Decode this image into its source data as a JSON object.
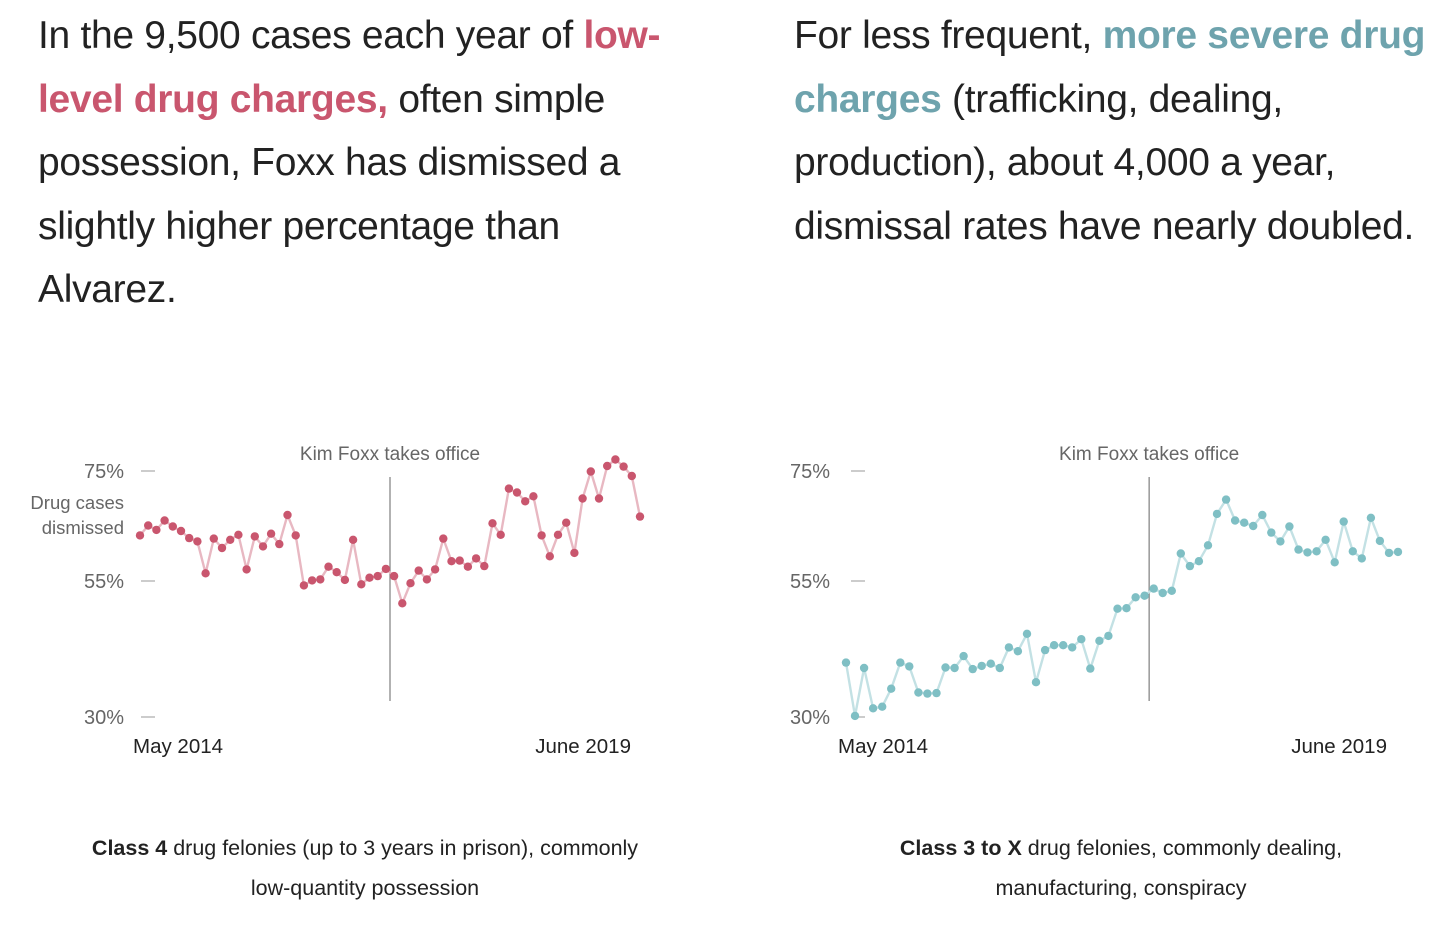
{
  "colors": {
    "low": "#c9566e",
    "low_line": "#e8b8c2",
    "severe": "#7fbfc4",
    "severe_line": "#c3e1e4",
    "axis_text": "#666666",
    "text": "#222222"
  },
  "panels": [
    {
      "intro": {
        "pre": "In the 9,500 cases each year of ",
        "highlight": "low-level drug charges,",
        "post": " often simple possession, Foxx has dismissed a slightly higher percentage than Alvarez."
      },
      "caption": {
        "bold": "Class 4",
        "rest": " drug felonies (up to 3 years in prison), commonly low-quantity possession"
      }
    },
    {
      "intro": {
        "pre": "For less frequent, ",
        "highlight": "more severe drug charges",
        "post": " (trafficking, dealing, production), about 4,000 a year, dismissal rates have nearly doubled."
      },
      "caption": {
        "bold": "Class 3 to X",
        "rest": " drug felonies, commonly dealing, manufacturing, conspiracy"
      }
    }
  ],
  "chart_data": [
    {
      "type": "line",
      "title": "Class 4 drug felonies (up to 3 years in prison), commonly low-quantity possession",
      "ylabel": "Drug cases dismissed",
      "ylim": [
        30,
        75
      ],
      "yticks": [
        "75%",
        "55%",
        "30%"
      ],
      "ytick_values": [
        75,
        55,
        30
      ],
      "x_start_label": "May 2014",
      "x_end_label": "June 2019",
      "annotation": {
        "label": "Kim Foxx takes office",
        "index": 30.5
      },
      "series": [
        {
          "name": "Class 4",
          "values": [
            63.3,
            65.1,
            64.3,
            66,
            64.9,
            64.1,
            62.8,
            62.2,
            56.4,
            62.7,
            61,
            62.5,
            63.4,
            57.1,
            63.1,
            61.3,
            63.6,
            61.7,
            67,
            63.3,
            54.2,
            55.1,
            55.3,
            57.6,
            56.6,
            55.2,
            62.5,
            54.4,
            55.6,
            55.9,
            57.2,
            55.9,
            50.9,
            54.6,
            56.9,
            55.3,
            57.1,
            62.7,
            58.6,
            58.7,
            57.6,
            59.1,
            57.7,
            65.5,
            63.4,
            71.8,
            71.1,
            69.5,
            70.4,
            63.3,
            59.5,
            63.4,
            65.6,
            60.1,
            70,
            74.9,
            70,
            75.9,
            77.1,
            75.8,
            74.1,
            66.7
          ]
        }
      ]
    },
    {
      "type": "line",
      "title": "Class 3 to X drug felonies, commonly dealing, manufacturing, conspiracy",
      "ylabel": "",
      "ylim": [
        30,
        75
      ],
      "yticks": [
        "75%",
        "55%",
        "30%"
      ],
      "ytick_values": [
        75,
        55,
        30
      ],
      "x_start_label": "May 2014",
      "x_end_label": "June 2019",
      "annotation": {
        "label": "Kim Foxx takes office",
        "index": 33.5
      },
      "series": [
        {
          "name": "Class 3 to X",
          "values": [
            40,
            30.2,
            39,
            31.6,
            31.9,
            35.2,
            40,
            39.3,
            34.5,
            34.3,
            34.4,
            39.1,
            39,
            41.2,
            38.8,
            39.4,
            39.8,
            39,
            42.8,
            42.1,
            45.3,
            36.4,
            42.3,
            43.2,
            43.2,
            42.8,
            44.3,
            38.9,
            44,
            44.9,
            49.9,
            50,
            52,
            52.3,
            53.6,
            52.8,
            53.2,
            60,
            57.7,
            58.6,
            61.5,
            67.2,
            69.8,
            66,
            65.6,
            65,
            67,
            63.8,
            62.2,
            64.9,
            60.7,
            60.2,
            60.4,
            62.5,
            58.4,
            65.8,
            60.4,
            59.1,
            66.5,
            62.3,
            60.1,
            60.3
          ]
        }
      ]
    }
  ]
}
